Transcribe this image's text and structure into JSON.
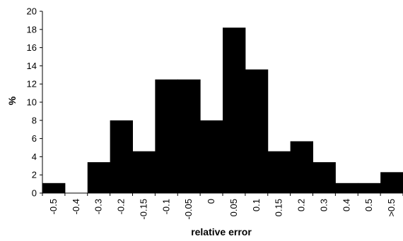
{
  "chart_data": {
    "type": "bar",
    "title": "",
    "xlabel": "relative error",
    "ylabel": "%",
    "categories": [
      "-0.5",
      "-0.4",
      "-0.3",
      "-0.2",
      "-0.15",
      "-0.1",
      "-0.05",
      "0",
      "0.05",
      "0.1",
      "0.15",
      "0.2",
      "0.3",
      "0.4",
      "0.5",
      ">0.5"
    ],
    "values": [
      1.1,
      0,
      3.4,
      8.0,
      4.6,
      12.5,
      12.5,
      8.0,
      18.2,
      13.6,
      4.6,
      5.7,
      3.4,
      1.1,
      1.1,
      2.3
    ],
    "ylim": [
      0,
      20
    ],
    "yticks": [
      0,
      2,
      4,
      6,
      8,
      10,
      12,
      14,
      16,
      18,
      20
    ],
    "bar_color": "#000000",
    "grid": false,
    "legend": "none"
  }
}
